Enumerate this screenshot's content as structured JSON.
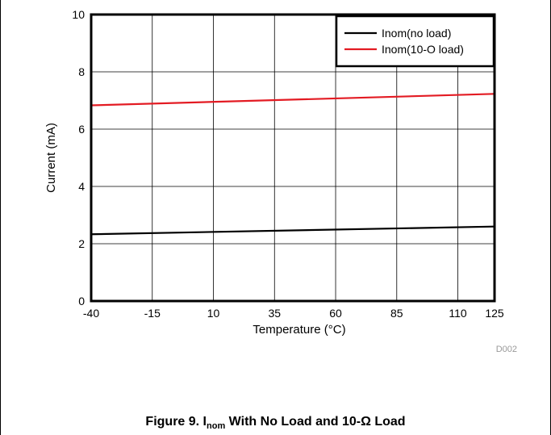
{
  "chart_data": {
    "type": "line",
    "title": "",
    "xlabel": "Temperature (°C)",
    "ylabel": "Current (mA)",
    "xlim": [
      -40,
      125
    ],
    "ylim": [
      0,
      10
    ],
    "x_ticks": [
      -40,
      -15,
      10,
      35,
      60,
      85,
      110,
      125
    ],
    "y_ticks": [
      0,
      2,
      4,
      6,
      8,
      10
    ],
    "grid": true,
    "legend": "top-right",
    "series": [
      {
        "name": "Inom(no load)",
        "color": "#000000",
        "x": [
          -40,
          125
        ],
        "y": [
          2.33,
          2.6
        ]
      },
      {
        "name": "Inom(10-O load)",
        "color": "#e31b23",
        "x": [
          -40,
          125
        ],
        "y": [
          6.83,
          7.23
        ]
      }
    ],
    "figure_code": "D002"
  },
  "caption": {
    "prefix": "Figure 9. I",
    "sub": "nom",
    "suffix": " With No Load and 10-Ω Load"
  }
}
